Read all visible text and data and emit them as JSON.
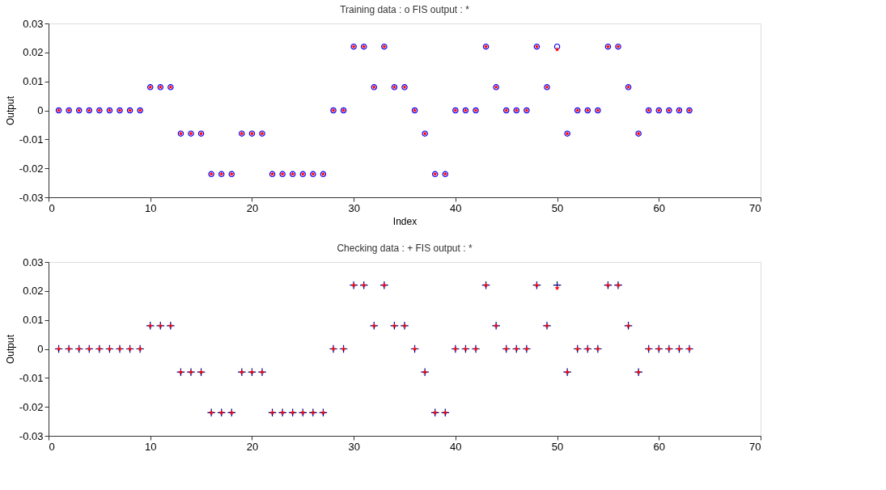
{
  "chart_data": [
    {
      "type": "scatter",
      "title": "Training data : o   FIS output : *",
      "xlabel": "Index",
      "ylabel": "Output",
      "x": [
        1,
        2,
        3,
        4,
        5,
        6,
        7,
        8,
        9,
        10,
        11,
        12,
        13,
        14,
        15,
        16,
        17,
        18,
        19,
        20,
        21,
        22,
        23,
        24,
        25,
        26,
        27,
        28,
        29,
        30,
        31,
        32,
        33,
        34,
        35,
        36,
        37,
        38,
        39,
        40,
        41,
        42,
        43,
        44,
        45,
        46,
        47,
        48,
        49,
        50,
        51,
        52,
        53,
        54,
        55,
        56,
        57,
        58,
        59,
        60,
        61,
        62,
        63
      ],
      "series": [
        {
          "color": "#0000ff",
          "marker": "circle",
          "values": [
            0,
            0,
            0,
            0,
            0,
            0,
            0,
            0,
            0,
            0.008,
            0.008,
            0.008,
            -0.008,
            -0.008,
            -0.008,
            -0.022,
            -0.022,
            -0.022,
            -0.008,
            -0.008,
            -0.008,
            -0.022,
            -0.022,
            -0.022,
            -0.022,
            -0.022,
            -0.022,
            0,
            0,
            0.022,
            0.022,
            0.008,
            0.022,
            0.008,
            0.008,
            0,
            -0.008,
            -0.022,
            -0.022,
            0,
            0,
            0,
            0.022,
            0.008,
            0,
            0,
            0,
            0.022,
            0.008,
            0.022,
            -0.008,
            0,
            0,
            0,
            0.022,
            0.022,
            0.008,
            -0.008,
            0,
            0,
            0,
            0,
            0
          ]
        },
        {
          "color": "#ff0000",
          "marker": "star",
          "values": [
            0,
            0,
            0,
            0,
            0,
            0,
            0,
            0,
            0,
            0.008,
            0.008,
            0.008,
            -0.008,
            -0.008,
            -0.008,
            -0.022,
            -0.022,
            -0.022,
            -0.008,
            -0.008,
            -0.008,
            -0.022,
            -0.022,
            -0.022,
            -0.022,
            -0.022,
            -0.022,
            0,
            0,
            0.022,
            0.022,
            0.008,
            0.022,
            0.008,
            0.008,
            0,
            -0.008,
            -0.022,
            -0.022,
            0,
            0,
            0,
            0.022,
            0.008,
            0,
            0,
            0,
            0.022,
            0.008,
            0.021,
            -0.008,
            0,
            0,
            0,
            0.022,
            0.022,
            0.008,
            -0.008,
            0,
            0,
            0,
            0,
            0
          ]
        }
      ],
      "xlim": [
        0,
        70
      ],
      "xticks": [
        0,
        10,
        20,
        30,
        40,
        50,
        60,
        70
      ],
      "ylim": [
        -0.03,
        0.03
      ],
      "yticks": [
        -0.03,
        -0.02,
        -0.01,
        0,
        0.01,
        0.02,
        0.03
      ],
      "grid": false
    },
    {
      "type": "scatter",
      "title": "Checking data : +   FIS output : *",
      "ylabel": "Output",
      "x": [
        1,
        2,
        3,
        4,
        5,
        6,
        7,
        8,
        9,
        10,
        11,
        12,
        13,
        14,
        15,
        16,
        17,
        18,
        19,
        20,
        21,
        22,
        23,
        24,
        25,
        26,
        27,
        28,
        29,
        30,
        31,
        32,
        33,
        34,
        35,
        36,
        37,
        38,
        39,
        40,
        41,
        42,
        43,
        44,
        45,
        46,
        47,
        48,
        49,
        50,
        51,
        52,
        53,
        54,
        55,
        56,
        57,
        58,
        59,
        60,
        61,
        62,
        63
      ],
      "series": [
        {
          "color": "#000080",
          "marker": "cross",
          "values": [
            0,
            0,
            0,
            0,
            0,
            0,
            0,
            0,
            0,
            0.008,
            0.008,
            0.008,
            -0.008,
            -0.008,
            -0.008,
            -0.022,
            -0.022,
            -0.022,
            -0.008,
            -0.008,
            -0.008,
            -0.022,
            -0.022,
            -0.022,
            -0.022,
            -0.022,
            -0.022,
            0,
            0,
            0.022,
            0.022,
            0.008,
            0.022,
            0.008,
            0.008,
            0,
            -0.008,
            -0.022,
            -0.022,
            0,
            0,
            0,
            0.022,
            0.008,
            0,
            0,
            0,
            0.022,
            0.008,
            0.022,
            -0.008,
            0,
            0,
            0,
            0.022,
            0.022,
            0.008,
            -0.008,
            0,
            0,
            0,
            0,
            0
          ]
        },
        {
          "color": "#ff0000",
          "marker": "star",
          "values": [
            0,
            0,
            0,
            0,
            0,
            0,
            0,
            0,
            0,
            0.008,
            0.008,
            0.008,
            -0.008,
            -0.008,
            -0.008,
            -0.022,
            -0.022,
            -0.022,
            -0.008,
            -0.008,
            -0.008,
            -0.022,
            -0.022,
            -0.022,
            -0.022,
            -0.022,
            -0.022,
            0,
            0,
            0.022,
            0.022,
            0.008,
            0.022,
            0.008,
            0.008,
            0,
            -0.008,
            -0.022,
            -0.022,
            0,
            0,
            0,
            0.022,
            0.008,
            0,
            0,
            0,
            0.022,
            0.008,
            0.021,
            -0.008,
            0,
            0,
            0,
            0.022,
            0.022,
            0.008,
            -0.008,
            0,
            0,
            0,
            0,
            0
          ]
        }
      ],
      "xlim": [
        0,
        70
      ],
      "xticks": [
        0,
        10,
        20,
        30,
        40,
        50,
        60,
        70
      ],
      "ylim": [
        -0.03,
        0.03
      ],
      "yticks": [
        -0.03,
        -0.02,
        -0.01,
        0,
        0.01,
        0.02,
        0.03
      ],
      "grid": false
    }
  ]
}
